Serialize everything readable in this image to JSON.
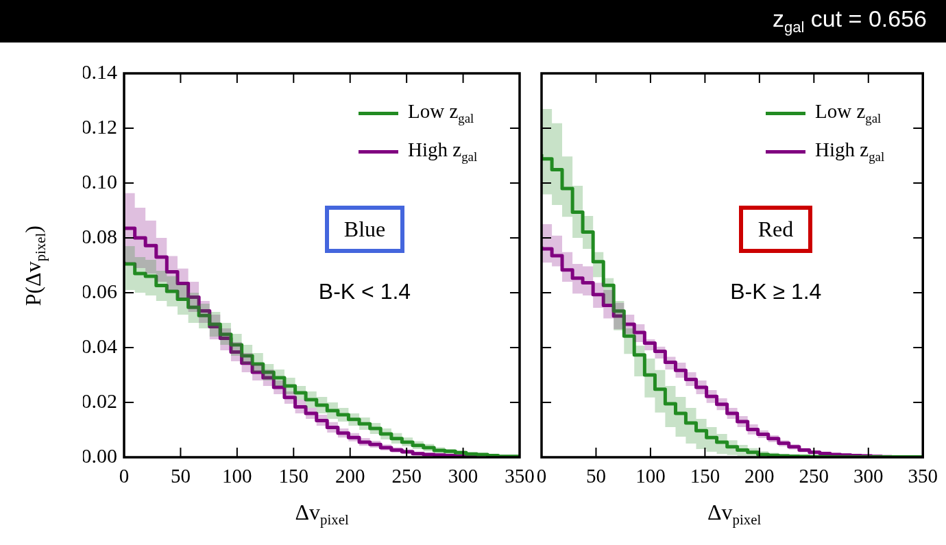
{
  "chart_data": [
    {
      "type": "step",
      "xlabel": "Δv$_{pixel}$",
      "ylabel": "P(Δv$_{pixel}$)",
      "annotations": [
        "Blue",
        "B-K < 1.4"
      ],
      "x": [
        0,
        9.5,
        18.9,
        28.4,
        37.8,
        47.3,
        56.8,
        66.2,
        75.7,
        85.1,
        94.6,
        104.1,
        113.5,
        123.0,
        132.4,
        141.9,
        151.4,
        160.8,
        170.3,
        179.7,
        189.2,
        198.6,
        208.1,
        217.6,
        227.0,
        236.5,
        245.9,
        255.4,
        264.9,
        274.3,
        283.8,
        293.2,
        302.7,
        312.2,
        321.6,
        331.1,
        340.5,
        350
      ],
      "series": [
        {
          "name": "Low z$_{gal}$",
          "color": "#228b22",
          "values": [
            0.0713,
            0.0705,
            0.067,
            0.066,
            0.0626,
            0.0605,
            0.0576,
            0.0547,
            0.0517,
            0.0485,
            0.0448,
            0.041,
            0.037,
            0.034,
            0.031,
            0.029,
            0.026,
            0.0235,
            0.021,
            0.019,
            0.017,
            0.0155,
            0.0138,
            0.0122,
            0.0105,
            0.0085,
            0.0068,
            0.0055,
            0.0043,
            0.0035,
            0.0025,
            0.0022,
            0.0017,
            0.0012,
            0.001,
            0.0006,
            0.0003,
            0.0003
          ],
          "upper": [
            0.078,
            0.077,
            0.073,
            0.072,
            0.068,
            0.066,
            0.063,
            0.06,
            0.056,
            0.053,
            0.049,
            0.045,
            0.041,
            0.038,
            0.034,
            0.032,
            0.029,
            0.026,
            0.024,
            0.022,
            0.02,
            0.018,
            0.016,
            0.0145,
            0.0125,
            0.0105,
            0.0088,
            0.0072,
            0.0058,
            0.0048,
            0.0036,
            0.003,
            0.0024,
            0.0018,
            0.0015,
            0.001,
            0.0006,
            0.0006
          ],
          "lower": [
            0.065,
            0.061,
            0.06,
            0.059,
            0.057,
            0.055,
            0.052,
            0.049,
            0.047,
            0.044,
            0.041,
            0.037,
            0.034,
            0.031,
            0.028,
            0.026,
            0.023,
            0.021,
            0.018,
            0.016,
            0.014,
            0.013,
            0.0115,
            0.01,
            0.0085,
            0.0065,
            0.005,
            0.004,
            0.003,
            0.0022,
            0.0015,
            0.0013,
            0.001,
            0.0007,
            0.0005,
            0.0003,
            0.0001,
            0.0001
          ]
        },
        {
          "name": "High z$_{gal}$",
          "color": "#800080",
          "values": [
            0.0838,
            0.0835,
            0.08,
            0.0772,
            0.073,
            0.0676,
            0.0634,
            0.0584,
            0.0534,
            0.0476,
            0.0434,
            0.0384,
            0.0343,
            0.031,
            0.029,
            0.0255,
            0.0218,
            0.0184,
            0.016,
            0.0134,
            0.0109,
            0.0088,
            0.0072,
            0.0055,
            0.0047,
            0.0035,
            0.0026,
            0.002,
            0.0013,
            0.001,
            0.0008,
            0.0006,
            0.0004,
            0.0003,
            null,
            null,
            null,
            null
          ],
          "upper": [
            0.098,
            0.0963,
            0.091,
            0.0863,
            0.08,
            0.0734,
            0.0688,
            0.064,
            0.057,
            0.052,
            0.047,
            0.042,
            0.038,
            0.034,
            0.032,
            0.028,
            0.024,
            0.021,
            0.018,
            0.0155,
            0.0128,
            0.0105,
            0.0088,
            0.007,
            0.006,
            0.0046,
            0.0036,
            0.0028,
            0.002,
            0.0016,
            0.0013,
            0.001,
            0.0007,
            0.0005,
            0.0004,
            0.0002,
            0.0002,
            0.0002
          ],
          "lower": [
            0.0715,
            0.071,
            0.069,
            0.067,
            0.064,
            0.061,
            0.058,
            0.053,
            0.049,
            0.043,
            0.039,
            0.035,
            0.031,
            0.028,
            0.026,
            0.023,
            0.0195,
            0.016,
            0.014,
            0.0115,
            0.009,
            0.0072,
            0.0058,
            0.0042,
            0.0035,
            0.0025,
            0.0017,
            0.0012,
            0.0007,
            0.0005,
            0.0004,
            0.0002,
            0.0001,
            0.0001,
            0,
            0,
            0,
            0
          ]
        }
      ],
      "xlim": [
        0,
        350
      ],
      "xticks": [
        0,
        50,
        100,
        150,
        200,
        250,
        300,
        350
      ],
      "ylim": [
        0,
        0.14
      ],
      "yticks": [
        {
          "value": 0,
          "label": "0.00"
        },
        {
          "value": 0.02,
          "label": "0.02"
        },
        {
          "value": 0.04,
          "label": "0.04"
        },
        {
          "value": 0.06,
          "label": "0.06"
        },
        {
          "value": 0.08,
          "label": "0.08"
        },
        {
          "value": 0.1,
          "label": "0.10"
        },
        {
          "value": 0.12,
          "label": "0.12"
        },
        {
          "value": 0.14,
          "label": "0.14"
        }
      ],
      "legend": "top right"
    },
    {
      "type": "step",
      "title": "z$_{gal}$ cut = 0.656",
      "xlabel": "Δv$_{pixel}$",
      "annotations": [
        "Red",
        "B-K ≥ 1.4"
      ],
      "x": [
        0,
        9.5,
        18.9,
        28.4,
        37.8,
        47.3,
        56.8,
        66.2,
        75.7,
        85.1,
        94.6,
        104.1,
        113.5,
        123.0,
        132.4,
        141.9,
        151.4,
        160.8,
        170.3,
        179.7,
        189.2,
        198.6,
        208.1,
        217.6,
        227.0,
        236.5,
        245.9,
        255.4,
        264.9,
        274.3,
        283.8,
        293.2,
        302.7,
        312.2,
        321.6,
        331.1,
        340.5,
        350
      ],
      "series": [
        {
          "name": "Low z$_{gal}$",
          "color": "#228b22",
          "values": [
            0.1105,
            0.1088,
            0.1049,
            0.098,
            0.0894,
            0.0821,
            0.0713,
            0.0627,
            0.0533,
            0.0442,
            0.0373,
            0.03,
            0.0248,
            0.0195,
            0.016,
            0.0125,
            0.0097,
            0.0072,
            0.0055,
            0.0038,
            0.0026,
            0.0018,
            0.001,
            0.0007,
            0.0005,
            0.0004,
            0.0003,
            0.0002,
            0.0002,
            0.0001,
            0.0001,
            0.0001,
            0.0001,
            0.0001,
            0.0001,
            0.0001,
            0.0001,
            0.0001
          ],
          "upper": [
            0.131,
            0.127,
            0.1218,
            0.1097,
            0.099,
            0.088,
            0.0748,
            0.0653,
            0.057,
            0.047,
            0.0407,
            0.036,
            0.0318,
            0.026,
            0.022,
            0.018,
            0.014,
            0.011,
            0.0085,
            0.0062,
            0.0045,
            0.0033,
            0.0022,
            0.0016,
            0.0012,
            0.0009,
            0.0007,
            0.0005,
            0.0004,
            0.0003,
            0.0003,
            0.0002,
            0.0002,
            0.0002,
            0.0002,
            0.0002,
            0.0002,
            0.0002
          ],
          "lower": [
            0.0973,
            0.0959,
            0.092,
            0.0877,
            0.08,
            0.076,
            0.0657,
            0.056,
            0.0463,
            0.0377,
            0.0295,
            0.0218,
            0.0163,
            0.011,
            0.0075,
            0.005,
            0.003,
            0.002,
            0.0012,
            0.0008,
            0.0005,
            0.0003,
            0.0002,
            0.0001,
            0.0001,
            0,
            0,
            0,
            0,
            0,
            0,
            0,
            0,
            0,
            0,
            0,
            0,
            0
          ]
        },
        {
          "name": "High z$_{gal}$",
          "color": "#800080",
          "values": [
            0.0769,
            0.076,
            0.0735,
            0.0683,
            0.0653,
            0.0636,
            0.0593,
            0.0554,
            0.0515,
            0.0485,
            0.0455,
            0.0416,
            0.0386,
            0.0346,
            0.0317,
            0.0284,
            0.0255,
            0.0222,
            0.0193,
            0.016,
            0.013,
            0.0101,
            0.0084,
            0.0068,
            0.0051,
            0.0038,
            0.0026,
            0.0018,
            0.0014,
            0.001,
            0.0008,
            0.0006,
            0.0005,
            0.0003,
            0.0002,
            null,
            null,
            null
          ],
          "upper": [
            0.0885,
            0.085,
            0.0808,
            0.0748,
            0.0705,
            0.0696,
            0.0636,
            0.061,
            0.0563,
            0.052,
            0.0485,
            0.043,
            0.0403,
            0.0366,
            0.0345,
            0.031,
            0.028,
            0.0245,
            0.0215,
            0.018,
            0.015,
            0.012,
            0.0098,
            0.008,
            0.0062,
            0.0047,
            0.0034,
            0.0025,
            0.002,
            0.0015,
            0.0012,
            0.0009,
            0.0007,
            0.0005,
            0.0004,
            0.0002,
            0.0002,
            0.0002
          ],
          "lower": [
            0.0713,
            0.071,
            0.0696,
            0.064,
            0.0597,
            0.059,
            0.0545,
            0.0506,
            0.0467,
            0.045,
            0.042,
            0.039,
            0.036,
            0.032,
            0.029,
            0.026,
            0.023,
            0.0198,
            0.0172,
            0.014,
            0.011,
            0.0083,
            0.007,
            0.0055,
            0.004,
            0.0029,
            0.0018,
            0.0012,
            0.0009,
            0.0006,
            0.0004,
            0.0003,
            0.0002,
            0.0001,
            0,
            0,
            0,
            0
          ]
        }
      ],
      "xlim": [
        0,
        350
      ],
      "xticks": [
        0,
        50,
        100,
        150,
        200,
        250,
        300,
        350
      ],
      "ylim": [
        0,
        0.14
      ],
      "yticks": [
        0,
        0.02,
        0.04,
        0.06,
        0.08,
        0.1,
        0.12,
        0.14
      ],
      "tick_labels": "x",
      "legend": "top right"
    }
  ]
}
